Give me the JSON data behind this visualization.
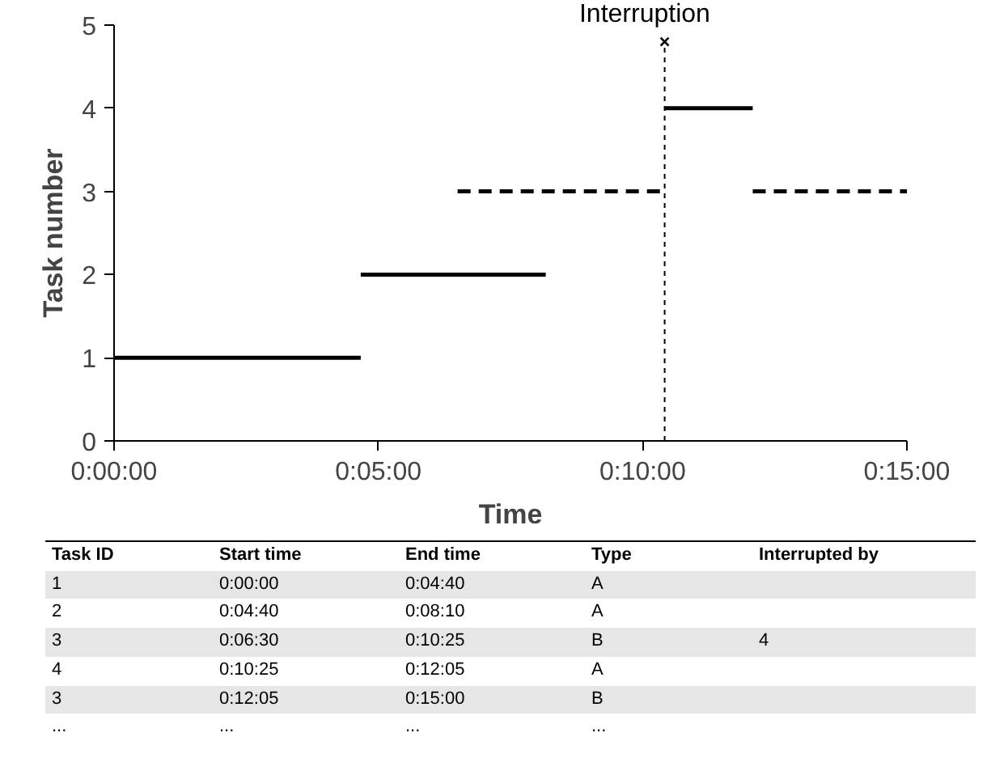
{
  "chart_data": {
    "type": "line",
    "xlabel": "Time",
    "ylabel": "Task number",
    "series": [
      {
        "color": "#000000",
        "line_style": "solid",
        "x": [
          0,
          0.077778
        ],
        "values": [
          1,
          1
        ]
      },
      {
        "color": "#000000",
        "line_style": "solid",
        "x": [
          0.077778,
          0.136111
        ],
        "values": [
          2,
          2
        ]
      },
      {
        "color": "#000000",
        "line_style": "dashed",
        "x": [
          0.108333,
          0.173611
        ],
        "values": [
          3,
          3
        ]
      },
      {
        "color": "#000000",
        "line_style": "solid",
        "x": [
          0.173611,
          0.201389
        ],
        "values": [
          4,
          4
        ]
      },
      {
        "color": "#000000",
        "line_style": "dashed",
        "x": [
          0.201389,
          0.25
        ],
        "values": [
          3,
          3
        ]
      }
    ],
    "xlim": [
      0,
      0.25
    ],
    "ylim": [
      0,
      5
    ],
    "xticks": [
      {
        "value": 0,
        "label": "0:00:00"
      },
      {
        "value": 0.083333,
        "label": "0:05:00"
      },
      {
        "value": 0.166667,
        "label": "0:10:00"
      },
      {
        "value": 0.25,
        "label": "0:15:00"
      }
    ],
    "yticks": [
      0,
      1,
      2,
      3,
      4,
      5
    ],
    "grid": false,
    "marker": "none",
    "ref_lines": [
      {
        "axis": "x",
        "value": 0.173611,
        "label": "Interruption",
        "line_style": "dashed",
        "color": "#000000"
      }
    ],
    "annotations": [
      "Task ID",
      "Start time",
      "End time",
      "Type",
      "Interrupted by",
      "1",
      "0:00:00",
      "0:04:40",
      "A",
      null,
      "2",
      "0:04:40",
      "0:08:10",
      "A",
      null,
      "3",
      "0:06:30",
      "0:10:25",
      "B",
      "4",
      "4",
      "0:10:25",
      "0:12:05",
      "A",
      null,
      "3",
      "0:12:05",
      "0:15:00",
      "B",
      null,
      "...",
      "...",
      "...",
      "...",
      null
    ]
  }
}
